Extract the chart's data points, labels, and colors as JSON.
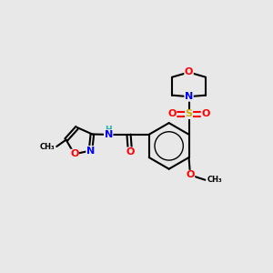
{
  "background_color": "#e8e8e8",
  "atom_colors": {
    "C": "#000000",
    "N": "#0000ff",
    "O": "#ff0000",
    "S": "#ccaa00",
    "H": "#20b2aa"
  },
  "bond_lw": 1.5,
  "font_size": 8,
  "small_font": 6.5
}
